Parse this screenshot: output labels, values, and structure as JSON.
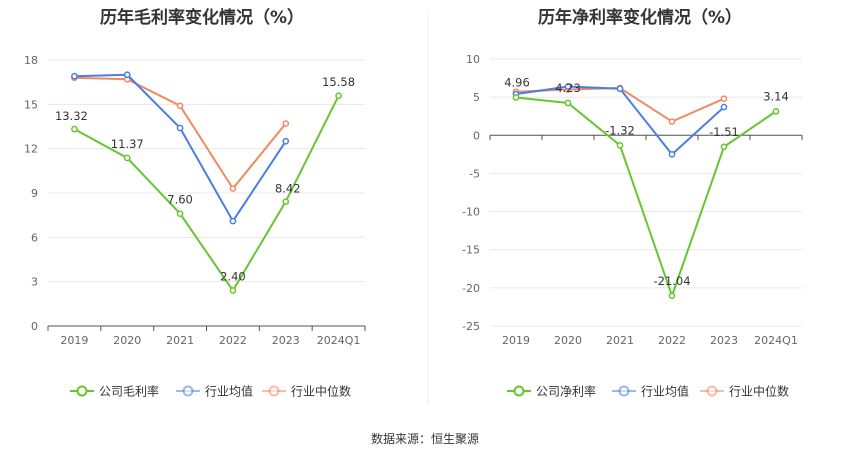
{
  "source": "数据来源：恒生聚源",
  "colors": {
    "company": "#66c630",
    "avg": "#4a7fe0",
    "median": "#f08a62"
  },
  "chart_data": [
    {
      "type": "line",
      "title": "历年毛利率变化情况（%）",
      "categories": [
        "2019",
        "2020",
        "2021",
        "2022",
        "2023",
        "2024Q1"
      ],
      "ylim": [
        0,
        18
      ],
      "yticks": [
        0,
        3,
        6,
        9,
        12,
        15,
        18
      ],
      "series": [
        {
          "name": "公司毛利率",
          "values": [
            13.32,
            11.37,
            7.6,
            2.4,
            8.42,
            15.58
          ],
          "labels": [
            "13.32",
            "11.37",
            "7.60",
            "2.40",
            "8.42",
            "15.58"
          ]
        },
        {
          "name": "行业均值",
          "values": [
            16.9,
            17.0,
            13.4,
            7.1,
            12.5,
            null
          ]
        },
        {
          "name": "行业中位数",
          "values": [
            16.8,
            16.7,
            14.9,
            9.3,
            13.7,
            null
          ]
        }
      ],
      "legend": "bottom"
    },
    {
      "type": "line",
      "title": "历年净利率变化情况（%）",
      "categories": [
        "2019",
        "2020",
        "2021",
        "2022",
        "2023",
        "2024Q1"
      ],
      "ylim": [
        -25,
        10
      ],
      "yticks": [
        -25,
        -20,
        -15,
        -10,
        -5,
        0,
        5,
        10
      ],
      "series": [
        {
          "name": "公司净利率",
          "values": [
            4.96,
            4.23,
            -1.32,
            -21.04,
            -1.51,
            3.14
          ],
          "labels": [
            "4.96",
            "4.23",
            "-1.32",
            "-21.04",
            "-1.51",
            "3.14"
          ]
        },
        {
          "name": "行业均值",
          "values": [
            5.4,
            6.4,
            6.1,
            -2.5,
            3.7,
            null
          ]
        },
        {
          "name": "行业中位数",
          "values": [
            5.7,
            6.0,
            6.2,
            1.8,
            4.8,
            null
          ]
        }
      ],
      "legend": "bottom"
    }
  ]
}
